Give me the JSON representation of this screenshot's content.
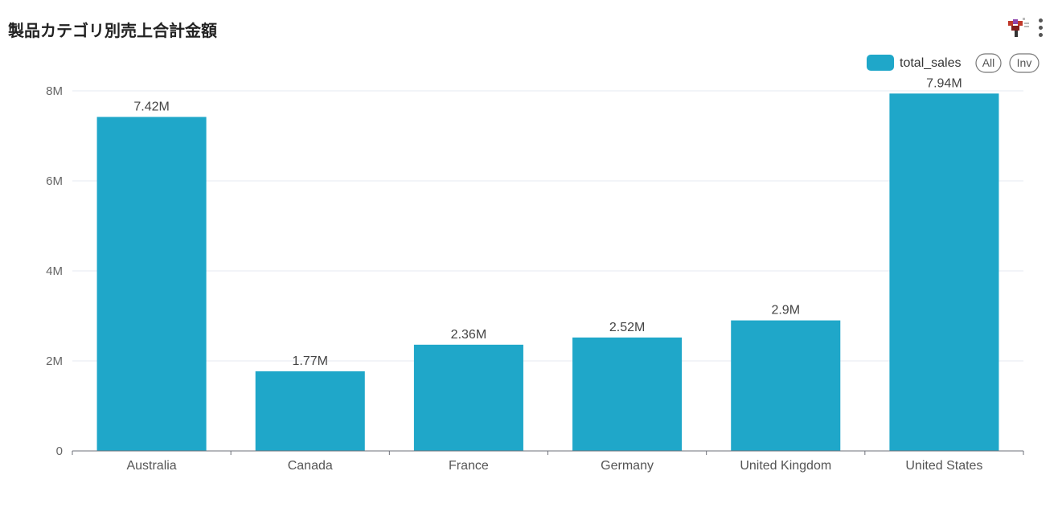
{
  "title": "製品カテゴリ別売上合計金額",
  "icons": {
    "app": "app-icon",
    "menu": "kebab-menu-icon"
  },
  "legend": {
    "all_label": "All",
    "inv_label": "Inv"
  },
  "colors": {
    "bar": "#1fa7c9",
    "grid": "#e6e9f2",
    "axis": "#6e7079"
  },
  "chart_data": {
    "type": "bar",
    "categories": [
      "Australia",
      "Canada",
      "France",
      "Germany",
      "United Kingdom",
      "United States"
    ],
    "series": [
      {
        "name": "total_sales",
        "values": [
          7420000,
          1770000,
          2360000,
          2520000,
          2900000,
          7940000
        ]
      }
    ],
    "data_labels": [
      "7.42M",
      "1.77M",
      "2.36M",
      "2.52M",
      "2.9M",
      "7.94M"
    ],
    "y_ticks": [
      0,
      2000000,
      4000000,
      6000000,
      8000000
    ],
    "y_tick_labels": [
      "0",
      "2M",
      "4M",
      "6M",
      "8M"
    ],
    "ylim": [
      0,
      8000000
    ],
    "grid": true,
    "legend_position": "top-right"
  }
}
